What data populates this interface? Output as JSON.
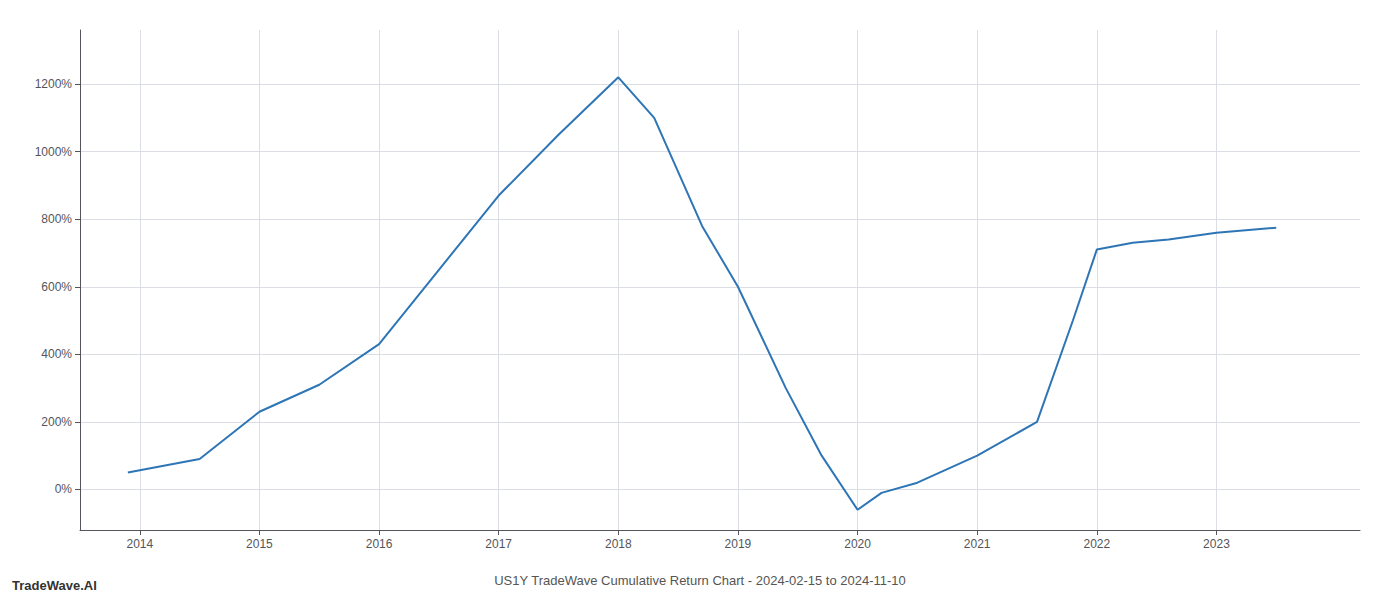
{
  "chart_data": {
    "type": "line",
    "title": "US1Y TradeWave Cumulative Return Chart - 2024-02-15 to 2024-11-10",
    "annotations": [
      "TradeWave.AI"
    ],
    "x": [
      2013.9,
      2014.5,
      2015,
      2015.5,
      2016,
      2016.5,
      2017,
      2017.5,
      2018,
      2018.3,
      2018.7,
      2019,
      2019.4,
      2019.7,
      2020,
      2020.2,
      2020.5,
      2021,
      2021.5,
      2021.8,
      2022,
      2022.3,
      2022.6,
      2023,
      2023.5
    ],
    "values": [
      50,
      90,
      230,
      310,
      430,
      650,
      870,
      1050,
      1220,
      1100,
      780,
      600,
      300,
      100,
      -60,
      -10,
      20,
      100,
      200,
      500,
      710,
      730,
      740,
      760,
      775
    ],
    "color": "#2e75b6",
    "xlim": [
      2013.5,
      2024.2
    ],
    "xticks": [
      2014,
      2015,
      2016,
      2017,
      2018,
      2019,
      2020,
      2021,
      2022,
      2023
    ],
    "ylim": [
      -120,
      1360
    ],
    "yticks": [
      {
        "value": 0,
        "label": "0%"
      },
      {
        "value": 200,
        "label": "200%"
      },
      {
        "value": 400,
        "label": "400%"
      },
      {
        "value": 600,
        "label": "600%"
      },
      {
        "value": 800,
        "label": "800%"
      },
      {
        "value": 1000,
        "label": "1000%"
      },
      {
        "value": 1200,
        "label": "1200%"
      }
    ],
    "grid": true
  }
}
